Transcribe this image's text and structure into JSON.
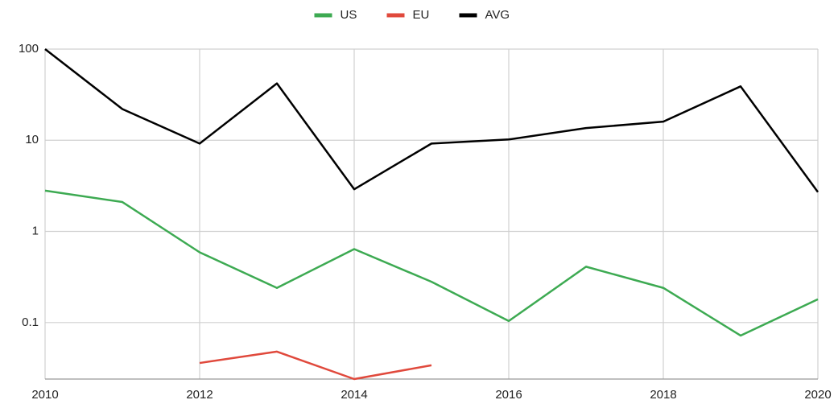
{
  "chart_data": {
    "type": "line",
    "log_y": true,
    "grid": true,
    "legend": "top",
    "x": [
      2010,
      2011,
      2012,
      2013,
      2014,
      2015,
      2016,
      2017,
      2018,
      2019,
      2020
    ],
    "xlim": [
      2010,
      2020
    ],
    "xticks": [
      2010,
      2012,
      2014,
      2016,
      2018,
      2020
    ],
    "ylim": [
      0.024,
      100
    ],
    "yticks": [
      0.1,
      1,
      10,
      100
    ],
    "series": [
      {
        "name": "US",
        "color": "#3daa52",
        "values": [
          2.8,
          2.1,
          0.59,
          0.24,
          0.64,
          0.28,
          0.104,
          0.41,
          0.24,
          0.072,
          0.18
        ]
      },
      {
        "name": "EU",
        "color": "#e0493c",
        "values": [
          null,
          null,
          0.036,
          0.048,
          0.024,
          0.034,
          null,
          null,
          null,
          null,
          null
        ]
      },
      {
        "name": "AVG",
        "color": "#000000",
        "values": [
          100,
          22,
          9.2,
          42,
          2.9,
          9.2,
          10.2,
          13.6,
          16,
          39,
          2.7
        ]
      }
    ]
  }
}
